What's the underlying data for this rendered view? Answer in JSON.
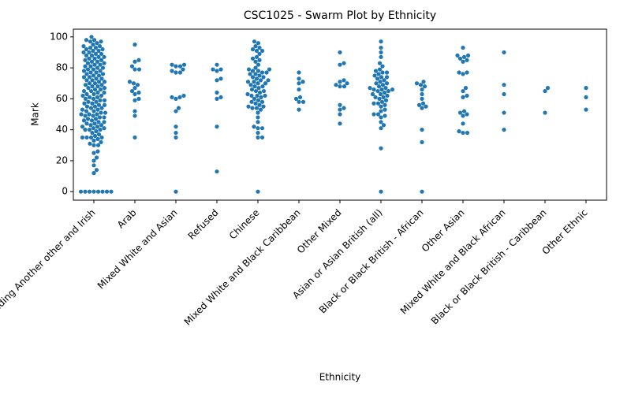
{
  "chart_data": {
    "type": "swarm",
    "title": "CSC1025 - Swarm Plot by Ethnicity",
    "x_label": "Ethnicity",
    "y_label": "Mark",
    "color": "#1f77b4",
    "ylim": [
      -5.5,
      105
    ],
    "yticks": [
      0,
      20,
      40,
      60,
      80,
      100
    ],
    "categories": [
      "White including Another other and Irish",
      "Arab",
      "Mixed White and Asian",
      "Refused",
      "Chinese",
      "Mixed White and Black Caribbean",
      "Other Mixed",
      "Asian or Asian British (all)",
      "Black or Black British - African",
      "Other Asian",
      "Mixed White and Black African",
      "Black or Black British - Caribbean",
      "Other Ethnic"
    ],
    "values": [
      [
        0,
        0,
        0,
        0,
        0,
        0,
        0,
        0,
        12,
        14,
        17,
        20,
        22,
        25,
        26,
        30,
        30,
        31,
        32,
        33,
        34,
        35,
        35,
        35,
        35,
        36,
        37,
        38,
        39,
        40,
        40,
        40,
        41,
        41,
        42,
        42,
        43,
        43,
        44,
        44,
        45,
        45,
        46,
        46,
        47,
        47,
        48,
        48,
        49,
        49,
        50,
        50,
        50,
        51,
        51,
        52,
        52,
        53,
        53,
        54,
        54,
        55,
        55,
        56,
        56,
        57,
        57,
        58,
        58,
        59,
        59,
        60,
        60,
        61,
        61,
        62,
        62,
        63,
        63,
        64,
        64,
        65,
        65,
        66,
        66,
        67,
        67,
        68,
        68,
        69,
        69,
        70,
        70,
        71,
        71,
        72,
        72,
        73,
        73,
        74,
        74,
        75,
        75,
        76,
        76,
        77,
        77,
        78,
        78,
        79,
        79,
        80,
        80,
        81,
        81,
        82,
        82,
        83,
        83,
        84,
        84,
        85,
        85,
        86,
        86,
        87,
        87,
        88,
        88,
        89,
        89,
        90,
        90,
        91,
        91,
        92,
        92,
        93,
        93,
        94,
        94,
        95,
        96,
        97,
        97,
        98,
        98,
        100
      ],
      [
        95,
        85,
        84,
        79,
        79,
        81,
        71,
        70,
        69,
        67,
        65,
        64,
        63,
        60,
        59,
        52,
        49,
        35
      ],
      [
        82,
        82,
        81,
        81,
        79,
        78,
        77,
        77,
        62,
        61,
        61,
        60,
        54,
        52,
        42,
        38,
        35,
        0
      ],
      [
        82,
        79,
        79,
        78,
        73,
        72,
        64,
        61,
        60,
        42,
        13
      ],
      [
        97,
        96,
        94,
        93,
        92,
        91,
        91,
        89,
        87,
        86,
        85,
        84,
        82,
        80,
        79,
        79,
        78,
        78,
        77,
        77,
        76,
        76,
        75,
        74,
        74,
        73,
        72,
        72,
        71,
        71,
        70,
        70,
        69,
        68,
        68,
        67,
        66,
        65,
        65,
        64,
        63,
        62,
        62,
        62,
        61,
        60,
        59,
        58,
        58,
        57,
        56,
        55,
        55,
        54,
        54,
        53,
        51,
        48,
        45,
        42,
        41,
        41,
        38,
        35,
        35,
        0
      ],
      [
        77,
        73,
        71,
        70,
        66,
        61,
        60,
        58,
        58,
        53
      ],
      [
        90,
        83,
        82,
        72,
        71,
        70,
        69,
        68,
        68,
        56,
        54,
        53,
        50,
        44
      ],
      [
        97,
        93,
        90,
        87,
        83,
        81,
        79,
        78,
        77,
        77,
        76,
        75,
        74,
        74,
        73,
        72,
        71,
        70,
        70,
        69,
        68,
        67,
        67,
        66,
        66,
        66,
        65,
        65,
        64,
        63,
        63,
        62,
        61,
        61,
        60,
        59,
        58,
        57,
        57,
        56,
        55,
        53,
        52,
        50,
        50,
        49,
        48,
        45,
        43,
        41,
        28,
        0
      ],
      [
        71,
        70,
        69,
        68,
        66,
        63,
        60,
        57,
        56,
        55,
        54,
        40,
        32,
        0
      ],
      [
        93,
        88,
        88,
        87,
        86,
        85,
        84,
        77,
        77,
        76,
        67,
        65,
        62,
        61,
        52,
        51,
        50,
        49,
        44,
        39,
        38,
        38
      ],
      [
        90,
        69,
        63,
        51,
        40
      ],
      [
        67,
        65,
        51
      ],
      [
        67,
        61,
        53
      ]
    ]
  }
}
